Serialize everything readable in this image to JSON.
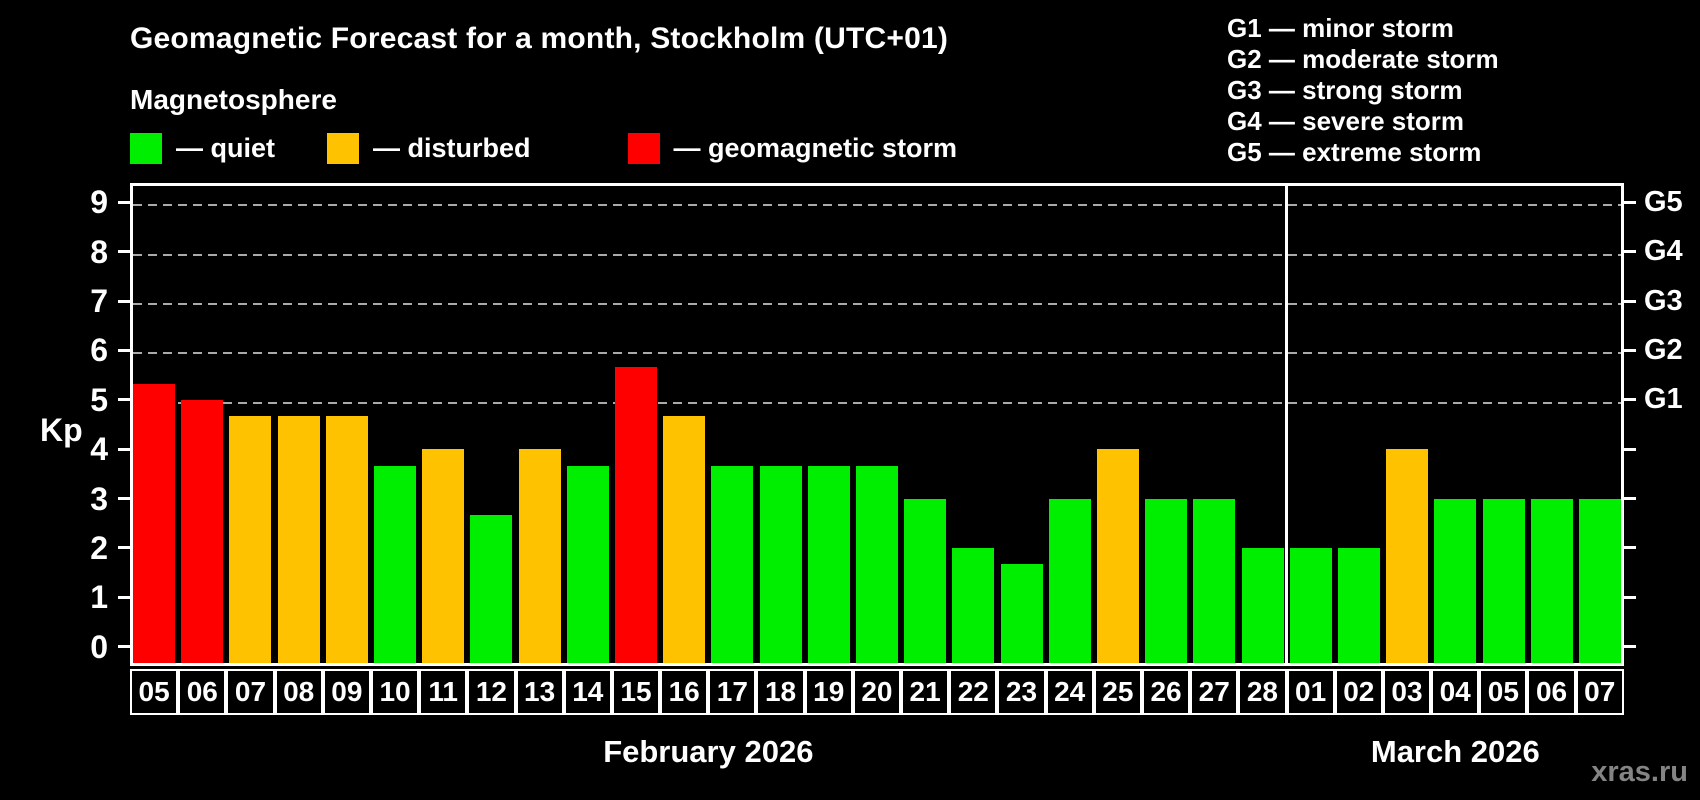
{
  "header": {
    "title": "Geomagnetic Forecast for a month, Stockholm (UTC+01)",
    "subtitle": "Magnetosphere"
  },
  "legend": {
    "items": [
      {
        "key": "quiet",
        "label": "— quiet",
        "color": "#00ee00"
      },
      {
        "key": "disturbed",
        "label": "— disturbed",
        "color": "#ffc200"
      },
      {
        "key": "storm",
        "label": "— geomagnetic storm",
        "color": "#ff0000"
      }
    ]
  },
  "g_legend": {
    "items": [
      "G1 — minor storm",
      "G2 — moderate storm",
      "G3 — strong storm",
      "G4 — severe storm",
      "G5 — extreme storm"
    ]
  },
  "axes": {
    "ylabel": "Kp",
    "left_tick_labels": [
      "0",
      "1",
      "2",
      "3",
      "4",
      "5",
      "6",
      "7",
      "8",
      "9"
    ],
    "right_labels": [
      {
        "label": "G1",
        "value": 5
      },
      {
        "label": "G2",
        "value": 6
      },
      {
        "label": "G3",
        "value": 7
      },
      {
        "label": "G4",
        "value": 8
      },
      {
        "label": "G5",
        "value": 9
      }
    ]
  },
  "watermark": "xras.ru",
  "chart_data": {
    "type": "bar",
    "title": "Geomagnetic Forecast for a month, Stockholm (UTC+01)",
    "ylabel": "Kp",
    "ylim": [
      0,
      9
    ],
    "grid": "horizontal dashed at Kp 5-9 (G1-G5 levels)",
    "legend_position": "top-left",
    "categories": [
      "05",
      "06",
      "07",
      "08",
      "09",
      "10",
      "11",
      "12",
      "13",
      "14",
      "15",
      "16",
      "17",
      "18",
      "19",
      "20",
      "21",
      "22",
      "23",
      "24",
      "25",
      "26",
      "27",
      "28",
      "01",
      "02",
      "03",
      "04",
      "05",
      "06",
      "07"
    ],
    "series": [
      {
        "name": "Kp forecast",
        "values": [
          5.33,
          5.0,
          4.67,
          4.67,
          4.67,
          3.67,
          4.0,
          2.67,
          4.0,
          3.67,
          5.67,
          4.67,
          3.67,
          3.67,
          3.67,
          3.67,
          3.0,
          2.0,
          1.67,
          3.0,
          4.0,
          3.0,
          3.0,
          2.0,
          2.0,
          2.0,
          4.0,
          3.0,
          3.0,
          3.0,
          3.0
        ]
      }
    ],
    "statuses": [
      "storm",
      "storm",
      "disturbed",
      "disturbed",
      "disturbed",
      "quiet",
      "disturbed",
      "quiet",
      "disturbed",
      "quiet",
      "storm",
      "disturbed",
      "quiet",
      "quiet",
      "quiet",
      "quiet",
      "quiet",
      "quiet",
      "quiet",
      "quiet",
      "disturbed",
      "quiet",
      "quiet",
      "quiet",
      "quiet",
      "quiet",
      "disturbed",
      "quiet",
      "quiet",
      "quiet",
      "quiet"
    ],
    "gridline_values": [
      5,
      6,
      7,
      8,
      9
    ],
    "months": [
      {
        "label": "February 2026",
        "days": 24
      },
      {
        "label": "March 2026",
        "days": 7
      }
    ],
    "separator_after_index": 23
  }
}
